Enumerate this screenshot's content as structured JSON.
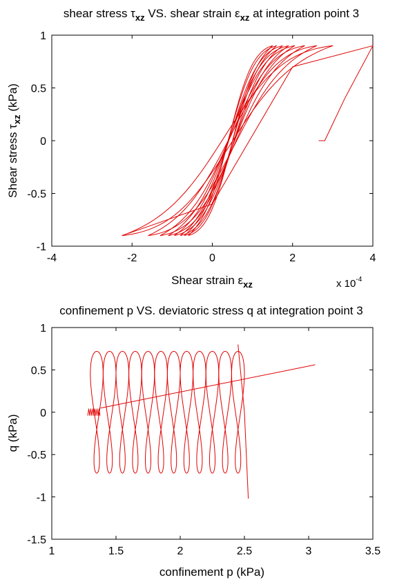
{
  "charts": {
    "top": {
      "title_prefix": "shear stress ",
      "title_tau": "τ",
      "title_sub1": "xz",
      "title_mid": " VS. shear strain ",
      "title_eps": "ε",
      "title_sub2": "xz",
      "title_suffix": " at integration point 3",
      "ylabel_prefix": "Shear stress ",
      "ylabel_tau": "τ",
      "ylabel_sub": "xz",
      "ylabel_suffix": " (kPa)",
      "xlabel_prefix": "Shear strain ",
      "xlabel_eps": "ε",
      "xlabel_sub": "xz",
      "exponent_base": "x 10",
      "exponent_power": "-4"
    },
    "bottom": {
      "title": "confinement p VS. deviatoric stress q at integration point 3",
      "ylabel": "q (kPa)",
      "xlabel": "confinement p (kPa)"
    }
  },
  "chart_data": [
    {
      "type": "line",
      "xlim": [
        -4,
        4
      ],
      "ylim": [
        -1,
        1
      ],
      "xticks": [
        "-4",
        "-2",
        "0",
        "2",
        "4"
      ],
      "yticks": [
        "-1",
        "-0.5",
        "0",
        "0.5",
        "1"
      ],
      "xtick_values": [
        -4,
        -2,
        0,
        2,
        4
      ],
      "ytick_values": [
        -1,
        -0.5,
        0,
        0.5,
        1
      ],
      "x_scale_exponent": -4,
      "grid": false,
      "color": "#e00000",
      "loops": [
        {
          "left": -0.6,
          "right": 1.5
        },
        {
          "left": -0.7,
          "right": 1.6
        },
        {
          "left": -0.8,
          "right": 1.75
        },
        {
          "left": -0.95,
          "right": 1.9
        },
        {
          "left": -1.1,
          "right": 2.05
        },
        {
          "left": -1.3,
          "right": 2.3
        },
        {
          "left": -1.6,
          "right": 2.6
        },
        {
          "left": -2.25,
          "right": 3.0
        }
      ],
      "final_branch": [
        [
          -2.25,
          -0.9
        ],
        [
          0.0,
          -0.6
        ],
        [
          2.0,
          0.7
        ],
        [
          4.0,
          0.9
        ],
        [
          3.3,
          0.4
        ],
        [
          2.8,
          0.0
        ],
        [
          2.65,
          0.0
        ]
      ]
    },
    {
      "type": "line",
      "xlim": [
        1,
        3.5
      ],
      "ylim": [
        -1.5,
        1
      ],
      "xticks": [
        "1",
        "1.5",
        "2",
        "2.5",
        "3",
        "3.5"
      ],
      "yticks": [
        "-1.5",
        "-1",
        "-0.5",
        "0",
        "0.5",
        "1"
      ],
      "xtick_values": [
        1,
        1.5,
        2,
        2.5,
        3,
        3.5
      ],
      "ytick_values": [
        -1.5,
        -1,
        -0.5,
        0,
        0.5,
        1
      ],
      "grid": false,
      "color": "#e00000",
      "loop_centers_p": [
        1.35,
        1.45,
        1.55,
        1.65,
        1.75,
        1.85,
        1.95,
        2.05,
        2.15,
        2.25,
        2.35,
        2.45
      ],
      "amplitude": 0.72,
      "start_point": [
        1.28,
        0.0
      ],
      "end_point": [
        2.53,
        -1.02
      ],
      "final_line": [
        [
          1.38,
          0.05
        ],
        [
          3.05,
          0.56
        ]
      ]
    }
  ]
}
